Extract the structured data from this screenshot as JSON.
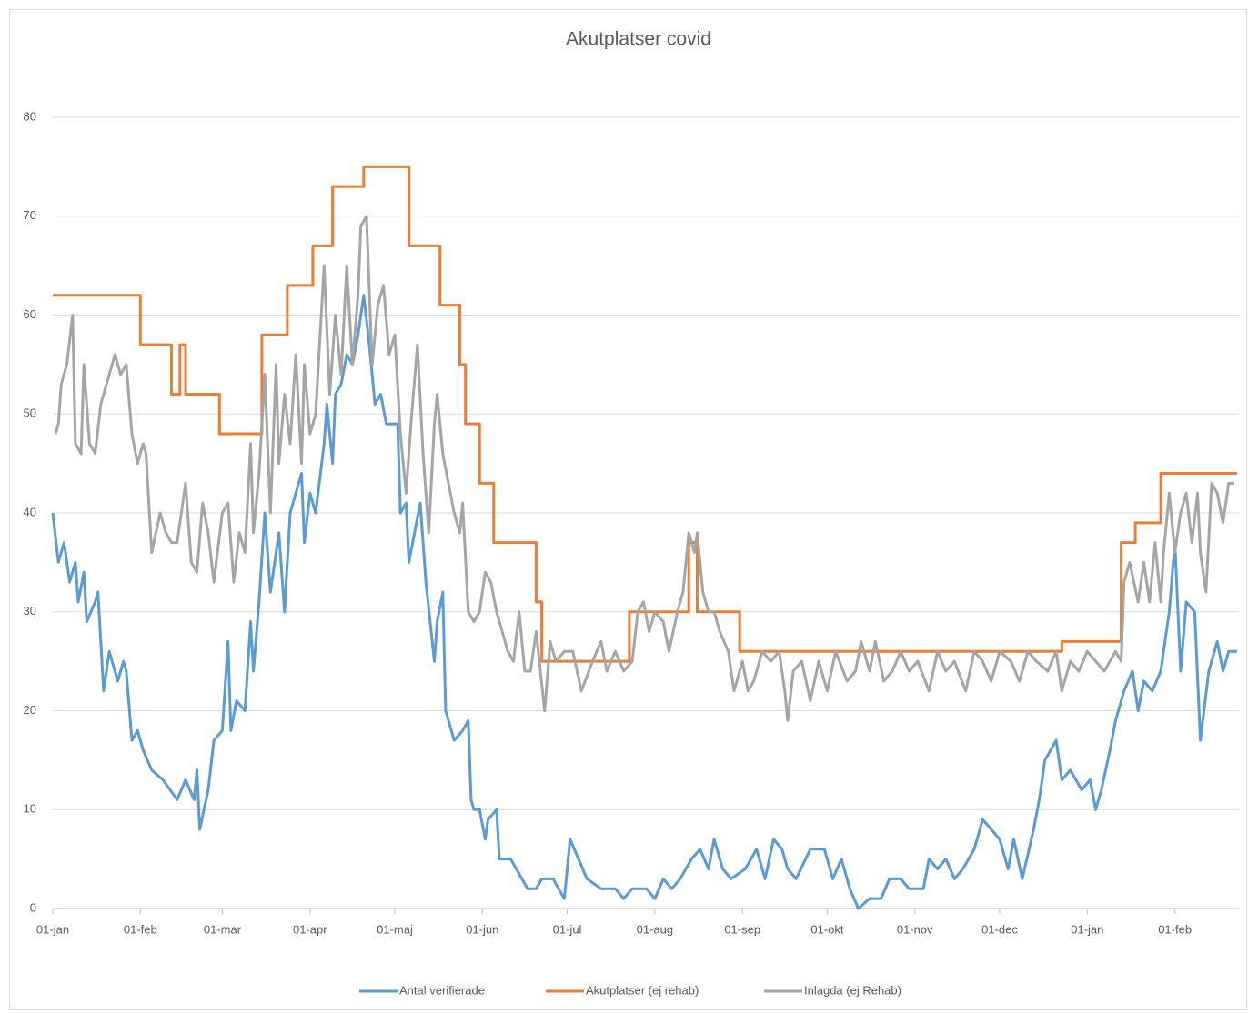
{
  "chart_data": {
    "type": "line",
    "title": "Akutplatser covid",
    "xlim": [
      0,
      419
    ],
    "xticks": [
      {
        "value": 0,
        "label": "01-jan"
      },
      {
        "value": 31,
        "label": "01-feb"
      },
      {
        "value": 60,
        "label": "01-mar"
      },
      {
        "value": 91,
        "label": "01-apr"
      },
      {
        "value": 121,
        "label": "01-maj"
      },
      {
        "value": 152,
        "label": "01-jun"
      },
      {
        "value": 182,
        "label": "01-jul"
      },
      {
        "value": 213,
        "label": "01-aug"
      },
      {
        "value": 244,
        "label": "01-sep"
      },
      {
        "value": 274,
        "label": "01-okt"
      },
      {
        "value": 305,
        "label": "01-nov"
      },
      {
        "value": 335,
        "label": "01-dec"
      },
      {
        "value": 366,
        "label": "01-jan"
      },
      {
        "value": 397,
        "label": "01-feb"
      }
    ],
    "ylim": [
      0,
      80
    ],
    "yticks": [
      0,
      10,
      20,
      30,
      40,
      50,
      60,
      70,
      80
    ],
    "grid": true,
    "legend": "bottom",
    "series": [
      {
        "name": "Antal verifierade",
        "color": "#5b9bd5",
        "x": [
          0,
          2,
          4,
          6,
          8,
          9,
          11,
          12,
          15,
          16,
          18,
          20,
          23,
          25,
          26,
          28,
          30,
          32,
          35,
          39,
          44,
          47,
          50,
          51,
          52,
          55,
          57,
          60,
          62,
          63,
          65,
          68,
          70,
          71,
          73,
          75,
          77,
          79,
          80,
          82,
          84,
          86,
          88,
          89,
          91,
          93,
          96,
          97,
          99,
          100,
          102,
          104,
          106,
          108,
          110,
          112,
          114,
          116,
          118,
          122,
          123,
          125,
          126,
          128,
          130,
          132,
          135,
          136,
          138,
          139,
          142,
          145,
          147,
          148,
          149,
          151,
          153,
          154,
          157,
          158,
          162,
          164,
          168,
          171,
          173,
          177,
          181,
          183,
          186,
          189,
          194,
          199,
          202,
          205,
          210,
          213,
          216,
          219,
          222,
          226,
          229,
          232,
          234,
          237,
          240,
          245,
          249,
          252,
          255,
          258,
          260,
          263,
          268,
          273,
          276,
          279,
          282,
          285,
          289,
          293,
          296,
          300,
          303,
          308,
          310,
          313,
          316,
          319,
          322,
          326,
          329,
          332,
          335,
          338,
          340,
          343,
          347,
          349,
          351,
          355,
          357,
          360,
          364,
          367,
          369,
          371,
          374,
          376,
          379,
          382,
          384,
          386,
          389,
          392,
          395,
          397,
          399,
          401,
          404,
          406,
          409,
          412,
          414,
          416,
          419
        ],
        "values": [
          40,
          35,
          37,
          33,
          35,
          31,
          34,
          29,
          31,
          32,
          22,
          26,
          23,
          25,
          24,
          17,
          18,
          16,
          14,
          13,
          11,
          13,
          11,
          14,
          8,
          12,
          17,
          18,
          27,
          18,
          21,
          20,
          29,
          24,
          31,
          40,
          32,
          36,
          38,
          30,
          40,
          42,
          44,
          37,
          42,
          40,
          47,
          51,
          45,
          52,
          53,
          56,
          55,
          58,
          62,
          57,
          51,
          52,
          49,
          49,
          40,
          41,
          35,
          38,
          41,
          33,
          25,
          29,
          32,
          20,
          17,
          18,
          19,
          11,
          10,
          10,
          7,
          9,
          10,
          5,
          5,
          4,
          2,
          2,
          3,
          3,
          1,
          7,
          5,
          3,
          2,
          2,
          1,
          2,
          2,
          1,
          3,
          2,
          3,
          5,
          6,
          4,
          7,
          4,
          3,
          4,
          6,
          3,
          7,
          6,
          4,
          3,
          6,
          6,
          3,
          5,
          2,
          0,
          1,
          1,
          3,
          3,
          2,
          2,
          5,
          4,
          5,
          3,
          4,
          6,
          9,
          8,
          7,
          4,
          7,
          3,
          8,
          11,
          15,
          17,
          13,
          14,
          12,
          13,
          10,
          12,
          16,
          19,
          22,
          24,
          20,
          23,
          22,
          24,
          30,
          37,
          24,
          31,
          30,
          17,
          24,
          27,
          24,
          26,
          26
        ]
      },
      {
        "name": "Akutplatser (ej rehab)",
        "color": "#ed7d31",
        "x": [
          0,
          31,
          31,
          42,
          42,
          45,
          45,
          47,
          47,
          59,
          59,
          74,
          74,
          83,
          83,
          92,
          92,
          99,
          99,
          110,
          110,
          126,
          126,
          137,
          137,
          144,
          144,
          146,
          146,
          151,
          151,
          156,
          156,
          171,
          171,
          173,
          173,
          204,
          204,
          225,
          225,
          228,
          228,
          243,
          243,
          357,
          357,
          378,
          378,
          383,
          383,
          392,
          392,
          419
        ],
        "values": [
          62,
          62,
          57,
          57,
          52,
          52,
          57,
          57,
          52,
          52,
          48,
          48,
          58,
          58,
          63,
          63,
          67,
          67,
          73,
          73,
          75,
          75,
          67,
          67,
          61,
          61,
          55,
          55,
          49,
          49,
          43,
          43,
          37,
          37,
          31,
          31,
          25,
          25,
          30,
          30,
          37,
          37,
          30,
          30,
          26,
          26,
          27,
          27,
          37,
          37,
          39,
          39,
          44,
          44
        ]
      },
      {
        "name": "Inlagda (ej Rehab)",
        "color": "#a5a5a5",
        "x": [
          1,
          2,
          3,
          5,
          7,
          8,
          10,
          11,
          13,
          15,
          17,
          19,
          22,
          24,
          26,
          28,
          30,
          32,
          33,
          35,
          38,
          40,
          42,
          44,
          47,
          49,
          51,
          53,
          55,
          57,
          60,
          62,
          64,
          66,
          68,
          70,
          71,
          73,
          75,
          77,
          79,
          80,
          82,
          84,
          86,
          88,
          89,
          91,
          93,
          96,
          98,
          100,
          102,
          104,
          106,
          108,
          109,
          111,
          113,
          115,
          117,
          119,
          121,
          123,
          125,
          127,
          129,
          131,
          133,
          135,
          136,
          138,
          140,
          142,
          144,
          145,
          147,
          149,
          151,
          153,
          155,
          157,
          159,
          161,
          163,
          165,
          167,
          169,
          171,
          174,
          176,
          178,
          181,
          184,
          187,
          191,
          194,
          196,
          199,
          202,
          205,
          207,
          209,
          211,
          213,
          216,
          218,
          221,
          223,
          225,
          227,
          228,
          230,
          232,
          234,
          236,
          239,
          241,
          244,
          246,
          248,
          251,
          254,
          257,
          259,
          260,
          262,
          265,
          268,
          271,
          274,
          277,
          281,
          284,
          286,
          289,
          291,
          294,
          297,
          300,
          303,
          306,
          310,
          313,
          316,
          319,
          323,
          326,
          329,
          332,
          335,
          339,
          342,
          345,
          348,
          352,
          355,
          357,
          360,
          363,
          366,
          369,
          372,
          376,
          378,
          379,
          381,
          384,
          386,
          388,
          390,
          392,
          393,
          395,
          397,
          399,
          401,
          403,
          405,
          406,
          408,
          410,
          412,
          414,
          416,
          418
        ],
        "values": [
          48,
          49,
          53,
          55,
          60,
          47,
          46,
          55,
          47,
          46,
          51,
          53,
          56,
          54,
          55,
          48,
          45,
          47,
          46,
          36,
          40,
          38,
          37,
          37,
          43,
          35,
          34,
          41,
          38,
          33,
          40,
          41,
          33,
          38,
          36,
          47,
          38,
          44,
          54,
          40,
          55,
          45,
          52,
          47,
          56,
          45,
          55,
          48,
          50,
          65,
          52,
          60,
          54,
          65,
          55,
          62,
          69,
          70,
          55,
          61,
          63,
          56,
          58,
          48,
          42,
          50,
          57,
          46,
          38,
          49,
          52,
          46,
          43,
          40,
          38,
          41,
          30,
          29,
          30,
          34,
          33,
          30,
          28,
          26,
          25,
          30,
          24,
          24,
          28,
          20,
          27,
          25,
          26,
          26,
          22,
          25,
          27,
          24,
          26,
          24,
          25,
          30,
          31,
          28,
          30,
          29,
          26,
          30,
          32,
          38,
          36,
          38,
          32,
          30,
          30,
          28,
          26,
          22,
          25,
          22,
          23,
          26,
          25,
          26,
          22,
          19,
          24,
          25,
          21,
          25,
          22,
          26,
          23,
          24,
          27,
          24,
          27,
          23,
          24,
          26,
          24,
          25,
          22,
          26,
          24,
          25,
          22,
          26,
          25,
          23,
          26,
          25,
          23,
          26,
          25,
          24,
          26,
          22,
          25,
          24,
          26,
          25,
          24,
          26,
          25,
          33,
          35,
          31,
          35,
          31,
          37,
          31,
          36,
          42,
          36,
          40,
          42,
          37,
          42,
          36,
          32,
          43,
          42,
          39,
          43,
          43
        ]
      }
    ]
  }
}
